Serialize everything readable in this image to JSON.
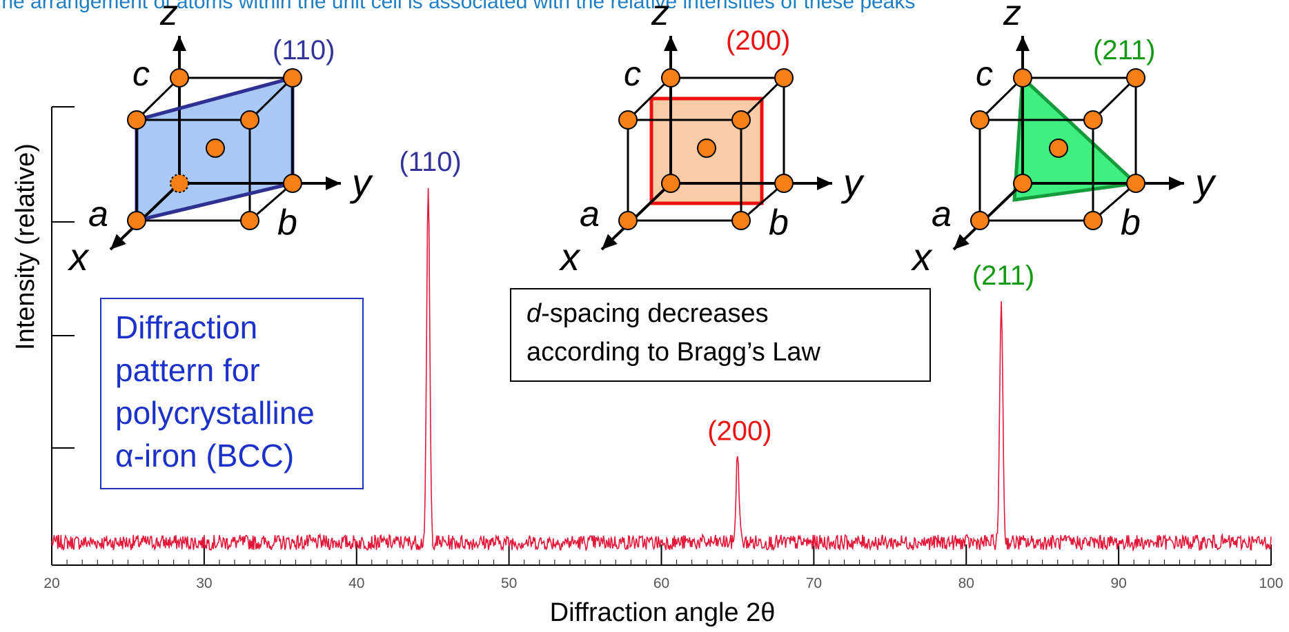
{
  "header": {
    "caption": "The arrangement of atoms within the unit cell is associated with the relative intensities of these peaks"
  },
  "chart_data": {
    "type": "line",
    "xlabel": "Diffraction angle 2θ",
    "ylabel": "Intensity (relative)",
    "xlim": [
      20,
      100
    ],
    "x_ticks": [
      "20",
      "30",
      "40",
      "50",
      "60",
      "70",
      "80",
      "90",
      "100"
    ],
    "ylim": [
      0,
      1
    ],
    "y_ticks_labeled": false,
    "baseline": 0.06,
    "peaks": [
      {
        "label": "(110)",
        "x": 44.7,
        "y": 1.0,
        "color": "#333399"
      },
      {
        "label": "(200)",
        "x": 65.0,
        "y": 0.29,
        "color": "#ee1111"
      },
      {
        "label": "(211)",
        "x": 82.3,
        "y": 0.7,
        "color": "#119911"
      }
    ],
    "line_color": "#e3173a"
  },
  "annotations": {
    "diffraction_box": [
      "Diffraction",
      "pattern for",
      "polycrystalline",
      "α-iron (BCC)"
    ],
    "bragg_italic": "d",
    "bragg_line1": "-spacing decreases",
    "bragg_line2": "according to Bragg’s Law"
  },
  "unit_cells": [
    {
      "plane": "(110)",
      "plane_color": "#333399",
      "fill": "#a9c8f5",
      "stroke": "#2e3192"
    },
    {
      "plane": "(200)",
      "plane_color": "#ee1111",
      "fill": "#f9cba6",
      "stroke": "#ee1111"
    },
    {
      "plane": "(211)",
      "plane_color": "#119911",
      "fill": "#40f07e",
      "stroke": "#169b3c"
    }
  ],
  "axis_labels": {
    "x": "x",
    "y": "y",
    "z": "z",
    "a": "a",
    "b": "b",
    "c": "c"
  },
  "colors": {
    "atom": "#f57f17",
    "atom_stroke": "#000000"
  }
}
